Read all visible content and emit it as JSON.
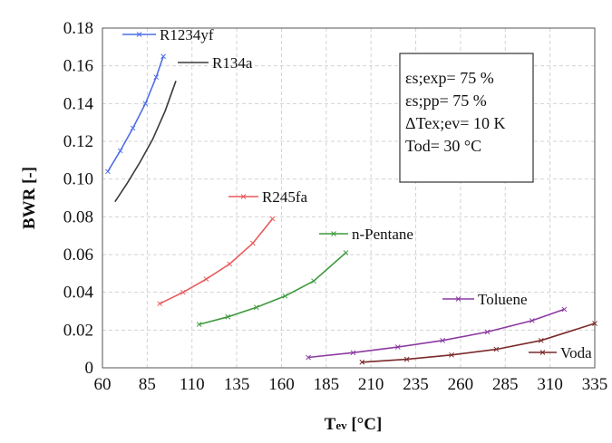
{
  "chart_data": {
    "type": "line",
    "xlabel": "Tev [°C]",
    "xlabel_main": "T",
    "xlabel_sub": "ev",
    "xlabel_unit": " [°C]",
    "ylabel": "BWR [-]",
    "xlim": [
      60,
      335
    ],
    "ylim": [
      0,
      0.18
    ],
    "x_ticks": [
      "60",
      "85",
      "110",
      "135",
      "160",
      "185",
      "210",
      "235",
      "260",
      "285",
      "310",
      "335"
    ],
    "y_ticks": [
      "0",
      "0.02",
      "0.04",
      "0.06",
      "0.08",
      "0.10",
      "0.12",
      "0.14",
      "0.16",
      "0.18"
    ],
    "grid": true,
    "annotation": [
      "εs;exp= 75 %",
      "εs;pp= 75 %",
      "ΔTex;ev= 10 K",
      "Tod= 30 °C"
    ],
    "series": [
      {
        "name": "R1234yf",
        "color": "#4f6fe6",
        "marker": "x",
        "x": [
          63,
          70,
          77,
          84,
          90,
          94
        ],
        "y": [
          0.104,
          0.115,
          0.127,
          0.14,
          0.154,
          0.165
        ]
      },
      {
        "name": "R134a",
        "color": "#3a3a3a",
        "marker": "none",
        "x": [
          67,
          74,
          81,
          88,
          95,
          101
        ],
        "y": [
          0.088,
          0.098,
          0.109,
          0.121,
          0.136,
          0.152
        ]
      },
      {
        "name": "R245fa",
        "color": "#e85a5a",
        "marker": "x",
        "x": [
          92,
          105,
          118,
          131,
          144,
          155
        ],
        "y": [
          0.034,
          0.04,
          0.047,
          0.055,
          0.066,
          0.079
        ]
      },
      {
        "name": "n-Pentane",
        "color": "#3d9a3d",
        "marker": "x",
        "x": [
          114,
          130,
          146,
          162,
          178,
          196
        ],
        "y": [
          0.023,
          0.027,
          0.032,
          0.038,
          0.046,
          0.061
        ]
      },
      {
        "name": "Toluene",
        "color": "#8b3aa0",
        "marker": "x",
        "x": [
          175,
          200,
          225,
          250,
          275,
          300,
          318
        ],
        "y": [
          0.0055,
          0.008,
          0.011,
          0.0145,
          0.019,
          0.025,
          0.031
        ]
      },
      {
        "name": "Voda",
        "color": "#7a2a2a",
        "marker": "x",
        "x": [
          205,
          230,
          255,
          280,
          305,
          335
        ],
        "y": [
          0.003,
          0.0045,
          0.0068,
          0.0098,
          0.0145,
          0.0235
        ]
      }
    ],
    "legend_entries": [
      {
        "name": "R1234yf",
        "placement": "top-left"
      },
      {
        "name": "R134a",
        "placement": "top-left"
      },
      {
        "name": "R245fa",
        "placement": "middle"
      },
      {
        "name": "n-Pentane",
        "placement": "middle"
      },
      {
        "name": "Toluene",
        "placement": "lower-right"
      },
      {
        "name": "Voda",
        "placement": "lower-right"
      }
    ]
  }
}
